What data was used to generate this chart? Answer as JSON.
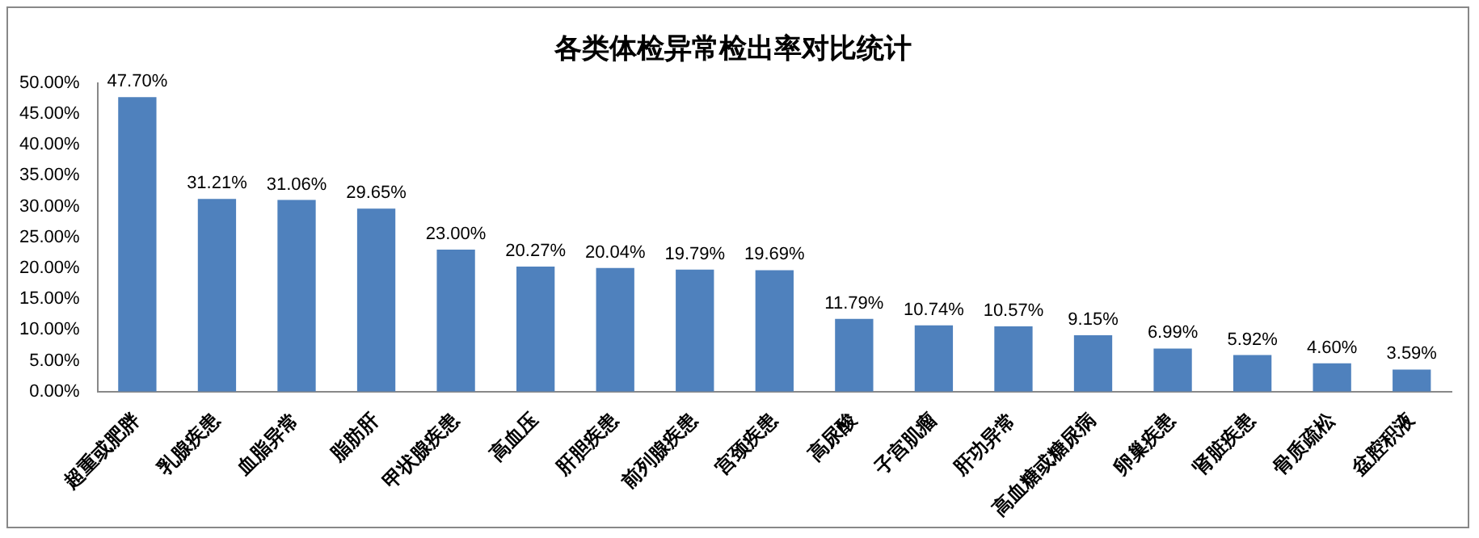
{
  "chart_data": {
    "type": "bar",
    "title": "各类体检异常检出率对比统计",
    "categories": [
      "超重或肥胖",
      "乳腺疾患",
      "血脂异常",
      "脂肪肝",
      "甲状腺疾患",
      "高血压",
      "肝胆疾患",
      "前列腺疾患",
      "宫颈疾患",
      "高尿酸",
      "子宫肌瘤",
      "肝功异常",
      "高血糖或糖尿病",
      "卵巢疾患",
      "肾脏疾患",
      "骨质疏松",
      "盆腔积液"
    ],
    "values": [
      47.7,
      31.21,
      31.06,
      29.65,
      23.0,
      20.27,
      20.04,
      19.79,
      19.69,
      11.79,
      10.74,
      10.57,
      9.15,
      6.99,
      5.92,
      4.6,
      3.59
    ],
    "value_labels": [
      "47.70%",
      "31.21%",
      "31.06%",
      "29.65%",
      "23.00%",
      "20.27%",
      "20.04%",
      "19.79%",
      "19.69%",
      "11.79%",
      "10.74%",
      "10.57%",
      "9.15%",
      "6.99%",
      "5.92%",
      "4.60%",
      "3.59%"
    ],
    "color": "#4f81bd",
    "ylim": [
      0,
      50
    ],
    "yticks": [
      {
        "value": 0,
        "label": "0.00%"
      },
      {
        "value": 5,
        "label": "5.00%"
      },
      {
        "value": 10,
        "label": "10.00%"
      },
      {
        "value": 15,
        "label": "15.00%"
      },
      {
        "value": 20,
        "label": "20.00%"
      },
      {
        "value": 25,
        "label": "25.00%"
      },
      {
        "value": 30,
        "label": "30.00%"
      },
      {
        "value": 35,
        "label": "35.00%"
      },
      {
        "value": 40,
        "label": "40.00%"
      },
      {
        "value": 45,
        "label": "45.00%"
      },
      {
        "value": 50,
        "label": "50.00%"
      }
    ],
    "grid": false,
    "legend": false
  }
}
